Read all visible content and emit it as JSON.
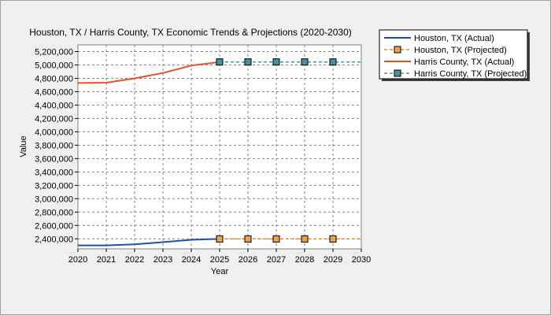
{
  "chart_data": {
    "type": "line",
    "title": "Houston, TX / Harris County, TX Economic Trends & Projections (2020-2030)",
    "xlabel": "Year",
    "ylabel": "Value",
    "xlim": [
      2020,
      2030
    ],
    "ylim": [
      2250000,
      5300000
    ],
    "x_ticks": [
      2020,
      2021,
      2022,
      2023,
      2024,
      2025,
      2026,
      2027,
      2028,
      2029,
      2030
    ],
    "y_ticks": [
      2400000,
      2600000,
      2800000,
      3000000,
      3200000,
      3400000,
      3600000,
      3800000,
      4000000,
      4200000,
      4400000,
      4600000,
      4800000,
      5000000,
      5200000
    ],
    "y_tick_labels": [
      "2,400,000",
      "2,600,000",
      "2,800,000",
      "3,000,000",
      "3,200,000",
      "3,400,000",
      "3,600,000",
      "3,800,000",
      "4,000,000",
      "4,200,000",
      "4,400,000",
      "4,600,000",
      "4,800,000",
      "5,000,000",
      "5,200,000"
    ],
    "grid": true,
    "legend_position": "top-right-outside",
    "series": [
      {
        "name": "Houston, TX (Actual)",
        "style": "solid",
        "marker": "none",
        "color": "#1f4fb0",
        "points": [
          [
            2020,
            2302000
          ],
          [
            2021,
            2302000
          ],
          [
            2022,
            2318000
          ],
          [
            2023,
            2350000
          ],
          [
            2024,
            2385000
          ],
          [
            2025,
            2398000
          ]
        ]
      },
      {
        "name": "Houston, TX (Projected)",
        "style": "dashed",
        "marker": "square",
        "color": "#f0a050",
        "line_color": "#e08a2e",
        "points": [
          [
            2025,
            2398000
          ],
          [
            2026,
            2398000
          ],
          [
            2027,
            2398000
          ],
          [
            2028,
            2398000
          ],
          [
            2029,
            2398000
          ],
          [
            2030,
            2398000
          ]
        ],
        "marker_x": [
          2025,
          2026,
          2027,
          2028,
          2029
        ]
      },
      {
        "name": "Harris County, TX (Actual)",
        "style": "solid",
        "marker": "none",
        "color": "#e8502a",
        "points": [
          [
            2020,
            4730000
          ],
          [
            2021,
            4735000
          ],
          [
            2022,
            4800000
          ],
          [
            2023,
            4880000
          ],
          [
            2024,
            4990000
          ],
          [
            2025,
            5045000
          ]
        ]
      },
      {
        "name": "Harris County, TX (Projected)",
        "style": "dashed",
        "marker": "square",
        "color": "#4a8f9c",
        "line_color": "#4a8f9c",
        "points": [
          [
            2025,
            5045000
          ],
          [
            2026,
            5045000
          ],
          [
            2027,
            5045000
          ],
          [
            2028,
            5045000
          ],
          [
            2029,
            5045000
          ],
          [
            2030,
            5045000
          ]
        ],
        "marker_x": [
          2025,
          2026,
          2027,
          2028,
          2029
        ]
      }
    ]
  }
}
